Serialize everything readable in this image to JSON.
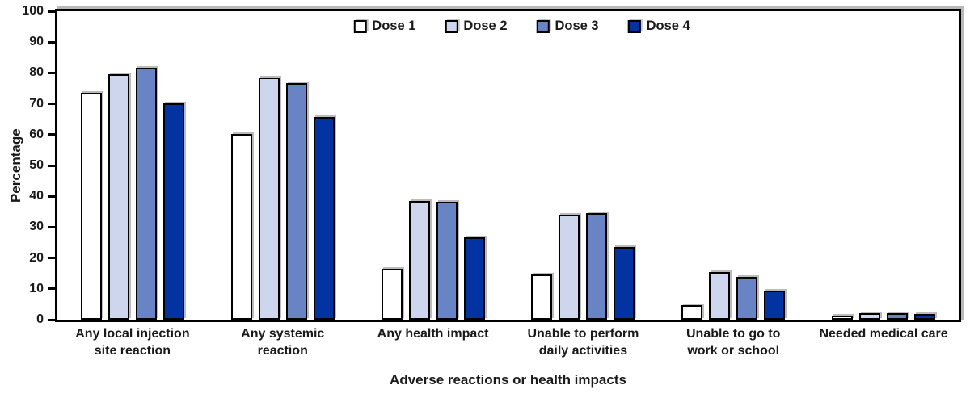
{
  "chart_data": {
    "type": "bar",
    "title": "",
    "xlabel": "Adverse reactions or health impacts",
    "ylabel": "Percentage",
    "ylim": [
      0,
      100
    ],
    "ytick_step": 10,
    "grid": false,
    "legend_position": "top-center-inside",
    "categories": [
      "Any local injection\nsite reaction",
      "Any systemic\nreaction",
      "Any health impact",
      "Unable to perform\ndaily activities",
      "Unable to go to\nwork or school",
      "Needed medical care"
    ],
    "series": [
      {
        "name": "Dose 1",
        "color": "#ffffff",
        "values": [
          73.5,
          60.1,
          16.4,
          14.6,
          4.6,
          1.2
        ]
      },
      {
        "name": "Dose 2",
        "color": "#cdd6ec",
        "values": [
          79.6,
          78.6,
          38.5,
          34.1,
          15.5,
          2.0
        ]
      },
      {
        "name": "Dose 3",
        "color": "#6884c4",
        "values": [
          81.7,
          76.8,
          38.2,
          34.6,
          13.8,
          2.0
        ]
      },
      {
        "name": "Dose 4",
        "color": "#0333a1",
        "values": [
          70.2,
          65.6,
          26.6,
          23.5,
          9.3,
          1.8
        ]
      }
    ],
    "styles": {
      "bar_border": "#000000",
      "axis_color": "#000000",
      "shadow_color": "#bcbcbc",
      "background": "#ffffff"
    }
  }
}
